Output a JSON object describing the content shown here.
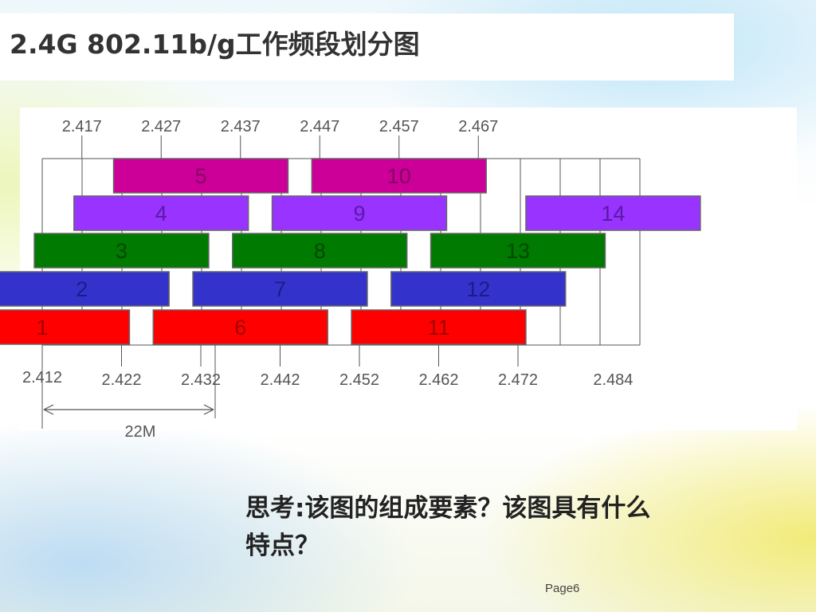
{
  "slide": {
    "title": "2.4G 802.11b/g工作频段划分图",
    "question": "思考:该图的组成要素？该图具有什么特点？",
    "page": "Page6"
  },
  "diagram": {
    "top_frequencies": [
      "2.417",
      "2.427",
      "2.437",
      "2.447",
      "2.457",
      "2.467"
    ],
    "bottom_frequencies": [
      "2.412",
      "2.422",
      "2.432",
      "2.442",
      "2.452",
      "2.462",
      "2.472",
      "2.484"
    ],
    "bandwidth_label": "22M",
    "channels": [
      {
        "label": "1",
        "center": 2.412,
        "color": "#ff0000",
        "text_color": "#a00000"
      },
      {
        "label": "2",
        "center": 2.417,
        "color": "#3333cc",
        "text_color": "#1c1c88"
      },
      {
        "label": "3",
        "center": 2.422,
        "color": "#007a00",
        "text_color": "#004a00"
      },
      {
        "label": "4",
        "center": 2.427,
        "color": "#9933ff",
        "text_color": "#5a1aa6"
      },
      {
        "label": "5",
        "center": 2.432,
        "color": "#cc0099",
        "text_color": "#840062"
      },
      {
        "label": "6",
        "center": 2.437,
        "color": "#ff0000",
        "text_color": "#a00000"
      },
      {
        "label": "7",
        "center": 2.442,
        "color": "#3333cc",
        "text_color": "#1c1c88"
      },
      {
        "label": "8",
        "center": 2.447,
        "color": "#007a00",
        "text_color": "#004a00"
      },
      {
        "label": "9",
        "center": 2.452,
        "color": "#9933ff",
        "text_color": "#5a1aa6"
      },
      {
        "label": "10",
        "center": 2.457,
        "color": "#cc0099",
        "text_color": "#840062"
      },
      {
        "label": "11",
        "center": 2.462,
        "color": "#ff0000",
        "text_color": "#a00000"
      },
      {
        "label": "12",
        "center": 2.467,
        "color": "#3333cc",
        "text_color": "#1c1c88"
      },
      {
        "label": "13",
        "center": 2.472,
        "color": "#007a00",
        "text_color": "#004a00"
      },
      {
        "label": "14",
        "center": 2.484,
        "color": "#9933ff",
        "text_color": "#5a1aa6"
      }
    ]
  }
}
